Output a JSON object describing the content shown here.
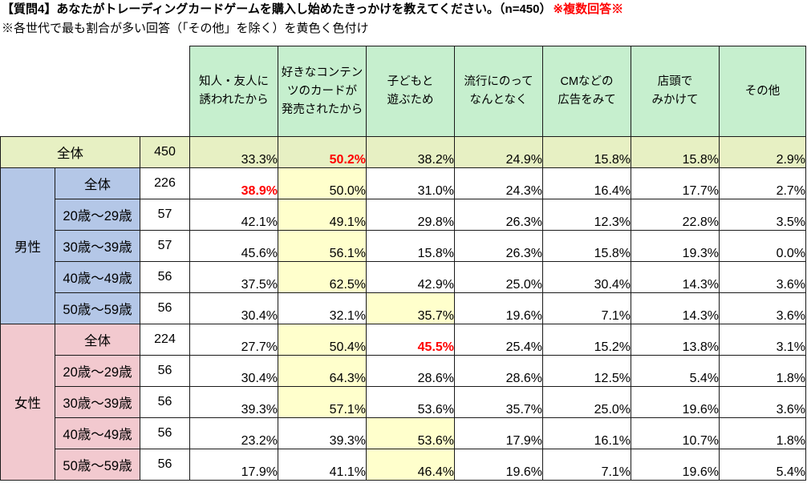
{
  "chart_data": {
    "type": "table",
    "title": "【質問4】あなたがトレーディングカードゲームを購入し始めたきっかけを教えてください。（n=450）",
    "title_note": "※複数回答※",
    "subtitle": "※各世代で最も割合が多い回答（「その他」を除く）を黄色く色付け",
    "columns": [
      {
        "lines": [
          "知人・友人に",
          "誘われたから"
        ]
      },
      {
        "lines": [
          "好きなコンテン",
          "ツのカードが",
          "発売されたから"
        ]
      },
      {
        "lines": [
          "子どもと",
          "遊ぶため"
        ]
      },
      {
        "lines": [
          "流行にのって",
          "なんとなく"
        ]
      },
      {
        "lines": [
          "CMなどの",
          "広告をみて"
        ]
      },
      {
        "lines": [
          "店頭で",
          "みかけて"
        ]
      },
      {
        "lines": [
          "その他"
        ]
      }
    ],
    "overall": {
      "label": "全体",
      "n": 450,
      "values": [
        "33.3%",
        "50.2%",
        "38.2%",
        "24.9%",
        "15.8%",
        "15.8%",
        "2.9%"
      ],
      "red_bold_index": 1
    },
    "groups": [
      {
        "label": "男性",
        "rows": [
          {
            "label": "全体",
            "n": 226,
            "values": [
              "38.9%",
              "50.0%",
              "31.0%",
              "24.3%",
              "16.4%",
              "17.7%",
              "2.7%"
            ],
            "yellow_index": 1,
            "red_bold_index": 0
          },
          {
            "label": "20歳～29歳",
            "n": 57,
            "values": [
              "42.1%",
              "49.1%",
              "29.8%",
              "26.3%",
              "12.3%",
              "22.8%",
              "3.5%"
            ],
            "yellow_index": 1
          },
          {
            "label": "30歳～39歳",
            "n": 57,
            "values": [
              "45.6%",
              "56.1%",
              "15.8%",
              "26.3%",
              "15.8%",
              "19.3%",
              "0.0%"
            ],
            "yellow_index": 1
          },
          {
            "label": "40歳～49歳",
            "n": 56,
            "values": [
              "37.5%",
              "62.5%",
              "42.9%",
              "25.0%",
              "30.4%",
              "14.3%",
              "3.6%"
            ],
            "yellow_index": 1
          },
          {
            "label": "50歳～59歳",
            "n": 56,
            "values": [
              "30.4%",
              "32.1%",
              "35.7%",
              "19.6%",
              "7.1%",
              "14.3%",
              "3.6%"
            ],
            "yellow_index": 2
          }
        ]
      },
      {
        "label": "女性",
        "rows": [
          {
            "label": "全体",
            "n": 224,
            "values": [
              "27.7%",
              "50.4%",
              "45.5%",
              "25.4%",
              "15.2%",
              "13.8%",
              "3.1%"
            ],
            "yellow_index": 1,
            "red_bold_index": 2
          },
          {
            "label": "20歳～29歳",
            "n": 56,
            "values": [
              "30.4%",
              "64.3%",
              "28.6%",
              "28.6%",
              "12.5%",
              "5.4%",
              "1.8%"
            ],
            "yellow_index": 1
          },
          {
            "label": "30歳～39歳",
            "n": 56,
            "values": [
              "39.3%",
              "57.1%",
              "53.6%",
              "35.7%",
              "25.0%",
              "19.6%",
              "3.6%"
            ],
            "yellow_index": 1
          },
          {
            "label": "40歳～49歳",
            "n": 56,
            "values": [
              "23.2%",
              "39.3%",
              "53.6%",
              "17.9%",
              "16.1%",
              "10.7%",
              "1.8%"
            ],
            "yellow_index": 2
          },
          {
            "label": "50歳～59歳",
            "n": 56,
            "values": [
              "17.9%",
              "41.1%",
              "46.4%",
              "19.6%",
              "7.1%",
              "19.6%",
              "5.4%"
            ],
            "yellow_index": 2
          }
        ]
      }
    ]
  },
  "colors": {
    "title_note": "#ff0000",
    "red_emphasis": "#ff0000",
    "header_bg": "#c6efce",
    "overall_row_bg": "#e7f0c3",
    "yellow_highlight": "#ffffcc",
    "male_bg": "#b4c7e7",
    "female_bg": "#f2c9cf",
    "border": "#1a1a1a"
  }
}
